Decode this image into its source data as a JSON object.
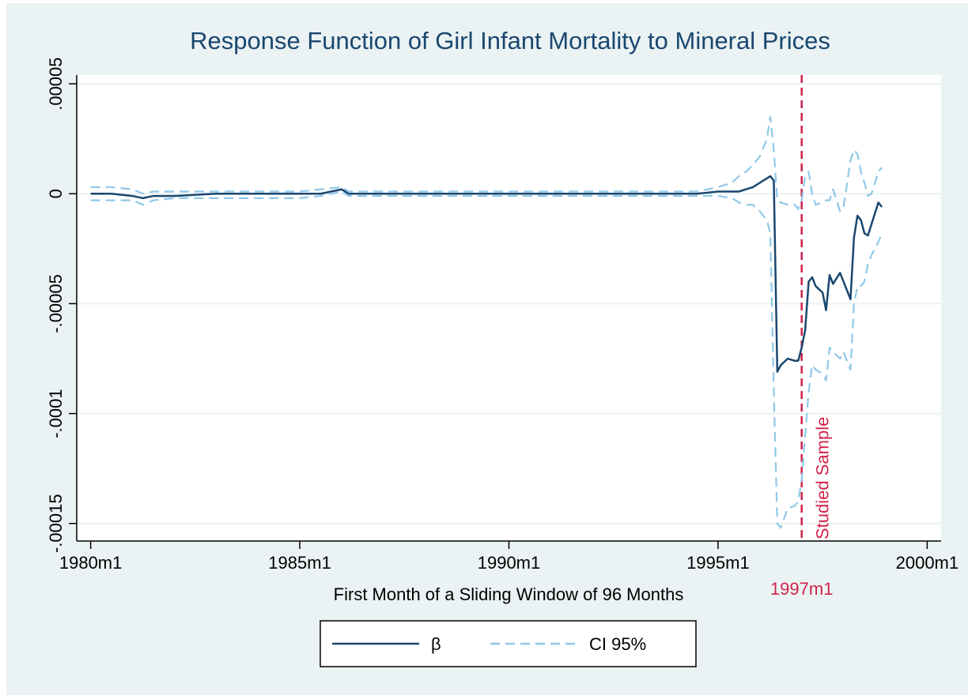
{
  "chart_data": {
    "type": "line",
    "title": "Response Function of Girl Infant Mortality to Mineral Prices",
    "x_label": "First Month of a Sliding Window of 96 Months",
    "x": [
      240,
      246,
      252,
      255,
      258,
      264,
      276,
      288,
      300,
      306,
      312,
      314,
      318,
      330,
      342,
      354,
      366,
      378,
      390,
      402,
      414,
      420,
      424,
      426,
      428,
      430,
      432,
      434,
      435,
      436,
      437,
      438,
      440,
      442,
      443,
      444,
      445,
      446,
      447,
      448,
      450,
      451,
      452,
      453,
      455,
      456,
      458,
      459,
      460,
      461,
      462,
      463,
      464,
      466,
      467
    ],
    "series": [
      {
        "name": "β",
        "color": "#1a476f",
        "values": [
          0,
          0,
          -1e-06,
          -2e-06,
          -1e-06,
          -1e-06,
          0,
          0,
          0,
          0,
          2e-06,
          0,
          0,
          0,
          0,
          0,
          0,
          0,
          0,
          0,
          0,
          1e-06,
          1e-06,
          1e-06,
          2e-06,
          3e-06,
          5e-06,
          7e-06,
          8e-06,
          6e-06,
          -8.1e-05,
          -7.8e-05,
          -7.5e-05,
          -7.6e-05,
          -7.6e-05,
          -7e-05,
          -6.2e-05,
          -4e-05,
          -3.8e-05,
          -4.2e-05,
          -4.5e-05,
          -5.3e-05,
          -3.7e-05,
          -4.1e-05,
          -3.6e-05,
          -4e-05,
          -4.8e-05,
          -2e-05,
          -1e-05,
          -1.2e-05,
          -1.8e-05,
          -1.9e-05,
          -1.4e-05,
          -4e-06,
          -6e-06
        ]
      },
      {
        "name": "CI 95%",
        "color": "#90c8e8",
        "dashed": true,
        "lower": [
          -3e-06,
          -3e-06,
          -3e-06,
          -5e-06,
          -3e-06,
          -2e-06,
          -2e-06,
          -2e-06,
          -2e-06,
          -1e-06,
          1e-06,
          -1e-06,
          -1e-06,
          -1e-06,
          -1e-06,
          -1e-06,
          -1e-06,
          -1e-06,
          -1e-06,
          -1e-06,
          -1e-06,
          -1e-06,
          -2e-06,
          -4e-06,
          -5e-06,
          -5e-06,
          -8e-06,
          -1.2e-05,
          -1.8e-05,
          -9e-05,
          -0.00015,
          -0.000152,
          -0.000143,
          -0.000142,
          -0.00014,
          -0.00013,
          -0.00011,
          -9e-05,
          -7.8e-05,
          -8e-05,
          -8.2e-05,
          -8.5e-05,
          -7e-05,
          -7.2e-05,
          -7.5e-05,
          -7.2e-05,
          -8e-05,
          -5e-05,
          -4.2e-05,
          -4.2e-05,
          -4e-05,
          -3.2e-05,
          -2.8e-05,
          -2.2e-05,
          -1.8e-05
        ],
        "upper": [
          3e-06,
          3e-06,
          2e-06,
          0,
          1e-06,
          1e-06,
          1e-06,
          1e-06,
          1e-06,
          2e-06,
          3e-06,
          1e-06,
          1e-06,
          1e-06,
          1e-06,
          1e-06,
          1e-06,
          1e-06,
          1e-06,
          1e-06,
          1e-06,
          3e-06,
          5e-06,
          8e-06,
          1e-05,
          1.3e-05,
          1.7e-05,
          2.5e-05,
          3.5e-05,
          2e-05,
          -3e-06,
          -4e-06,
          -5e-06,
          -5e-06,
          -7e-06,
          -3e-06,
          8e-06,
          1e-05,
          0,
          -5e-06,
          -4e-06,
          -3e-06,
          -3e-06,
          2e-06,
          -8e-06,
          -6e-06,
          1.5e-05,
          2e-05,
          1.8e-05,
          1e-05,
          5e-06,
          -1e-06,
          0,
          1e-05,
          1.2e-05
        ]
      }
    ],
    "xlim": [
      236,
      484
    ],
    "xticks": [
      {
        "value": 240,
        "label": "1980m1"
      },
      {
        "value": 300,
        "label": "1985m1"
      },
      {
        "value": 360,
        "label": "1990m1"
      },
      {
        "value": 420,
        "label": "1995m1"
      },
      {
        "value": 480,
        "label": "2000m1"
      }
    ],
    "ylim": [
      -0.000158,
      5.4e-05
    ],
    "yticks": [
      {
        "value": 5e-05,
        "label": ".00005"
      },
      0,
      {
        "value": -5e-05,
        "label": "-.00005"
      },
      {
        "value": -0.0001,
        "label": "-.0001"
      },
      {
        "value": -0.00015,
        "label": "-.00015"
      }
    ],
    "grid": true,
    "xline": {
      "value": 444,
      "label": "1997m1",
      "text": "Studied Sample",
      "color": "#d0234b"
    },
    "legend": "bottom"
  }
}
